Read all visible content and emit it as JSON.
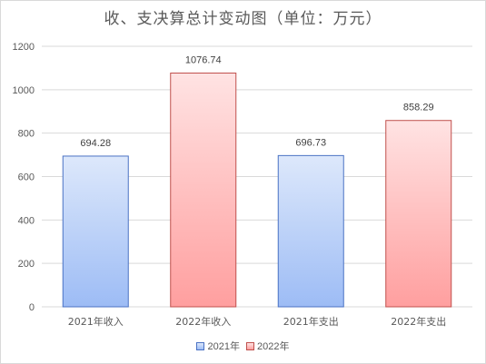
{
  "chart_data": {
    "type": "bar",
    "title": "收、支决算总计变动图（单位：万元）",
    "categories": [
      "2021年收入",
      "2022年收入",
      "2021年支出",
      "2022年支出"
    ],
    "values": [
      694.28,
      1076.74,
      696.73,
      858.29
    ],
    "value_labels": [
      "694.28",
      "1076.74",
      "696.73",
      "858.29"
    ],
    "bar_series": [
      "2021年",
      "2022年",
      "2021年",
      "2022年"
    ],
    "series": [
      {
        "name": "2021年",
        "color_top": "#dde8fb",
        "color_bottom": "#9dbcf5",
        "stroke": "#4a72c4"
      },
      {
        "name": "2022年",
        "color_top": "#ffe3e3",
        "color_bottom": "#ff9f9f",
        "stroke": "#c0504d"
      }
    ],
    "ylim": [
      0,
      1200
    ],
    "yticks": [
      0,
      200,
      400,
      600,
      800,
      1000,
      1200
    ],
    "ytick_labels": [
      "0",
      "200",
      "400",
      "600",
      "800",
      "1000",
      "1200"
    ],
    "grid": true,
    "legend_position": "bottom"
  }
}
